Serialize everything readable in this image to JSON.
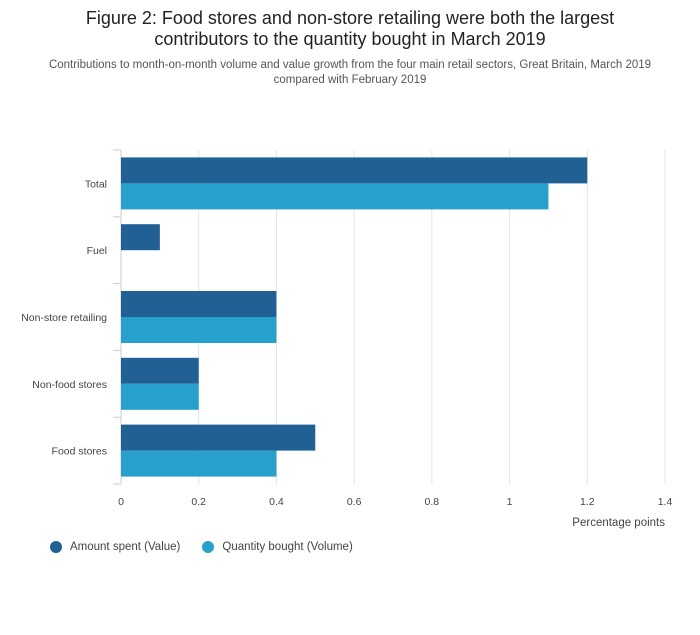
{
  "chart_data": {
    "type": "bar",
    "orientation": "horizontal",
    "title_line1": "Figure 2: Food stores and non-store retailing were both the largest",
    "title_line2": "contributors to the quantity bought in March 2019",
    "subtitle": "Contributions to month-on-month volume and value growth from the four main retail sectors, Great Britain, March 2019 compared with February 2019",
    "categories": [
      "Total",
      "Fuel",
      "Non-store retailing",
      "Non-food stores",
      "Food stores"
    ],
    "series": [
      {
        "name": "Amount spent (Value)",
        "color": "#206095",
        "values": [
          1.2,
          0.1,
          0.4,
          0.2,
          0.5
        ]
      },
      {
        "name": "Quantity bought (Volume)",
        "color": "#27a0cc",
        "values": [
          1.1,
          0.0,
          0.4,
          0.2,
          0.4
        ]
      }
    ],
    "xlim": [
      0,
      1.4
    ],
    "xticks": [
      0,
      0.2,
      0.4,
      0.6,
      0.8,
      1,
      1.2,
      1.4
    ],
    "xtick_labels": [
      "0",
      "0.2",
      "0.4",
      "0.6",
      "0.8",
      "1",
      "1.2",
      "1.4"
    ],
    "xlabel": "Percentage points",
    "ylabel": "",
    "grid": true,
    "legend_position": "bottom-left"
  }
}
